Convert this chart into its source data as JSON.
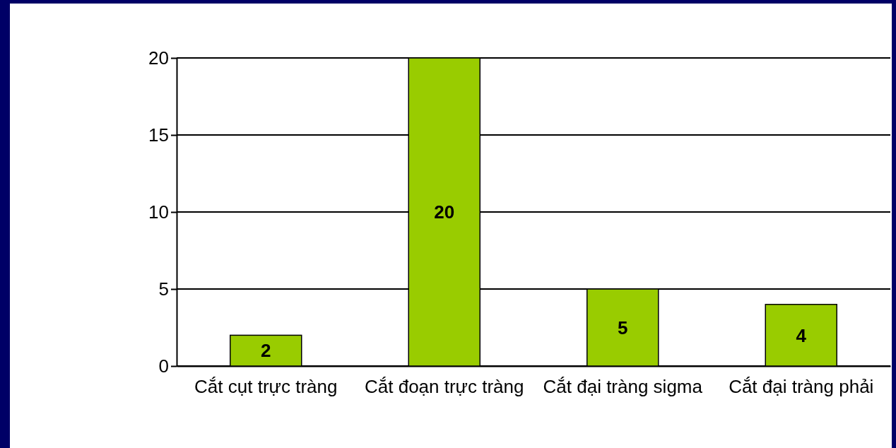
{
  "chart_data": {
    "type": "bar",
    "categories": [
      "Cắt cụt trực tràng",
      "Cắt đoạn trực tràng",
      "Cắt đại tràng sigma",
      "Cắt đại tràng phải"
    ],
    "values": [
      2,
      20,
      5,
      4
    ],
    "color": "#99cc00",
    "ylim": [
      0,
      20
    ],
    "yticks": [
      0,
      5,
      10,
      15,
      20
    ],
    "grid": "y",
    "data_labels": true
  }
}
